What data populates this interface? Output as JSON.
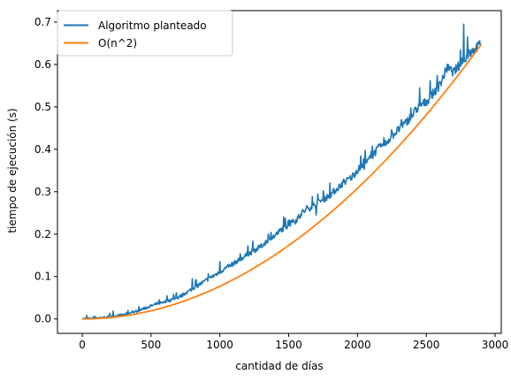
{
  "chart_data": {
    "type": "line",
    "title": "",
    "xlabel": "cantidad de días",
    "ylabel": "tiempo de ejecución (s)",
    "xlim": [
      -180,
      3045
    ],
    "ylim": [
      -0.034,
      0.727
    ],
    "x_ticks": [
      0,
      500,
      1000,
      1500,
      2000,
      2500,
      3000
    ],
    "x_tick_labels": [
      "0",
      "500",
      "1000",
      "1500",
      "2000",
      "2500",
      "3000"
    ],
    "y_ticks": [
      0.0,
      0.1,
      0.2,
      0.3,
      0.4,
      0.5,
      0.6,
      0.7
    ],
    "y_tick_labels": [
      "0.0",
      "0.1",
      "0.2",
      "0.3",
      "0.4",
      "0.5",
      "0.6",
      "0.7"
    ],
    "grid": false,
    "legend_position": "top-left",
    "series": [
      {
        "name": "Algoritmo planteado",
        "color": "#1f77b4",
        "x": [
          0,
          50,
          100,
          150,
          200,
          250,
          300,
          350,
          400,
          450,
          500,
          550,
          600,
          650,
          700,
          750,
          800,
          850,
          900,
          950,
          1000,
          1050,
          1100,
          1150,
          1200,
          1250,
          1300,
          1350,
          1400,
          1450,
          1500,
          1550,
          1600,
          1650,
          1700,
          1750,
          1800,
          1850,
          1900,
          1950,
          2000,
          2050,
          2100,
          2150,
          2200,
          2250,
          2300,
          2350,
          2400,
          2450,
          2500,
          2550,
          2600,
          2650,
          2700,
          2750,
          2800,
          2850,
          2900
        ],
        "y": [
          0.0,
          0.001,
          0.002,
          0.003,
          0.005,
          0.007,
          0.01,
          0.013,
          0.018,
          0.024,
          0.03,
          0.036,
          0.04,
          0.045,
          0.05,
          0.06,
          0.07,
          0.08,
          0.09,
          0.1,
          0.11,
          0.12,
          0.13,
          0.14,
          0.15,
          0.16,
          0.17,
          0.185,
          0.195,
          0.21,
          0.22,
          0.23,
          0.25,
          0.26,
          0.27,
          0.28,
          0.29,
          0.305,
          0.32,
          0.33,
          0.35,
          0.36,
          0.38,
          0.4,
          0.41,
          0.43,
          0.445,
          0.46,
          0.48,
          0.5,
          0.51,
          0.53,
          0.55,
          0.59,
          0.58,
          0.6,
          0.62,
          0.63,
          0.65
        ],
        "spikes": [
          {
            "x": 330,
            "y": 0.02
          },
          {
            "x": 560,
            "y": 0.045
          },
          {
            "x": 800,
            "y": 0.095
          },
          {
            "x": 1000,
            "y": 0.135
          },
          {
            "x": 1200,
            "y": 0.16
          },
          {
            "x": 1350,
            "y": 0.2
          },
          {
            "x": 1530,
            "y": 0.235
          },
          {
            "x": 1700,
            "y": 0.245
          },
          {
            "x": 1900,
            "y": 0.33
          },
          {
            "x": 2100,
            "y": 0.395
          },
          {
            "x": 2320,
            "y": 0.47
          },
          {
            "x": 2450,
            "y": 0.545
          },
          {
            "x": 2650,
            "y": 0.6
          },
          {
            "x": 2770,
            "y": 0.695
          },
          {
            "x": 2800,
            "y": 0.665
          }
        ]
      },
      {
        "name": "O(n^2)",
        "color": "#ff7f0e",
        "formula": "y = 7.7e-8 * x^2",
        "x_range": [
          0,
          2900
        ]
      }
    ]
  }
}
